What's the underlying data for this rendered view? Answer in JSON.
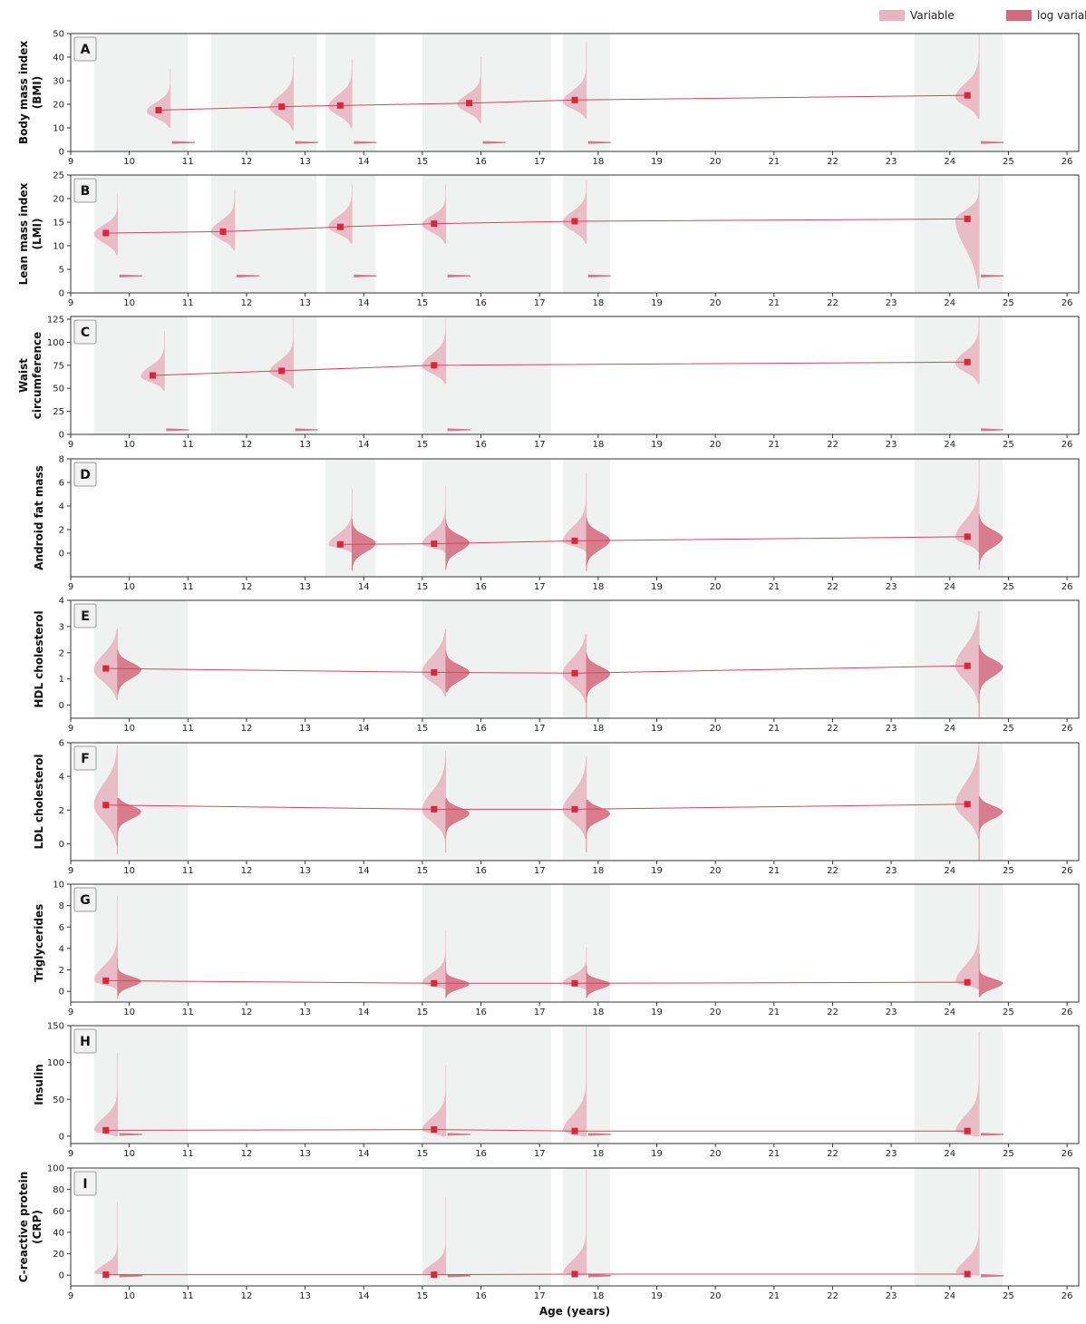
{
  "chart_data": {
    "type": "violin",
    "xlabel": "Age (years)",
    "xlim": [
      9,
      26.2
    ],
    "xticks": [
      9,
      10,
      11,
      12,
      13,
      14,
      15,
      16,
      17,
      18,
      19,
      20,
      21,
      22,
      23,
      24,
      25,
      26
    ],
    "legend": {
      "placement": "top-right",
      "entries": [
        {
          "label": "Variable",
          "color": "#e8b4bf"
        },
        {
          "label": "log variable",
          "color": "#d2697d"
        }
      ]
    },
    "colors": {
      "variable": "#e8b4bf",
      "log_variable": "#d2697d",
      "marker": "#d62839",
      "line": "#d6455a",
      "band": "#f0f1f1"
    },
    "visit_bands": [
      [
        9.4,
        11.0
      ],
      [
        11.4,
        13.2
      ],
      [
        13.35,
        14.2
      ],
      [
        15.0,
        17.2
      ],
      [
        17.4,
        18.2
      ],
      [
        23.4,
        24.9
      ]
    ],
    "panels": [
      {
        "letter": "A",
        "ylabel_lines": [
          "Body mass index",
          "(BMI)"
        ],
        "ylim": [
          0,
          50
        ],
        "yticks": [
          0,
          10,
          20,
          30,
          40,
          50
        ],
        "bands": [
          0,
          1,
          2,
          3,
          4,
          5
        ],
        "points": [
          [
            10.5,
            17.5
          ],
          [
            12.6,
            19
          ],
          [
            13.6,
            19.5
          ],
          [
            15.8,
            20.5
          ],
          [
            17.6,
            21.8
          ],
          [
            24.3,
            23.8
          ]
        ],
        "violins": [
          {
            "x": 10.7,
            "min": 10,
            "q": 16,
            "mid": 17,
            "max": 35,
            "w": 0.4,
            "log": {
              "y": 3.8,
              "w": 0.4,
              "h": 0.9
            }
          },
          {
            "x": 12.8,
            "min": 9,
            "q": 17,
            "mid": 18.5,
            "max": 40,
            "w": 0.4,
            "log": {
              "y": 3.8,
              "w": 0.4,
              "h": 0.9
            }
          },
          {
            "x": 13.8,
            "min": 10,
            "q": 17.5,
            "mid": 19,
            "max": 39,
            "w": 0.4,
            "log": {
              "y": 3.8,
              "w": 0.4,
              "h": 0.9
            }
          },
          {
            "x": 16.0,
            "min": 12,
            "q": 19,
            "mid": 20,
            "max": 40,
            "w": 0.4,
            "log": {
              "y": 3.8,
              "w": 0.4,
              "h": 0.9
            }
          },
          {
            "x": 17.8,
            "min": 14,
            "q": 20,
            "mid": 21,
            "max": 46,
            "w": 0.4,
            "log": {
              "y": 3.8,
              "w": 0.4,
              "h": 0.9
            }
          },
          {
            "x": 24.5,
            "min": 14,
            "q": 21.5,
            "mid": 23,
            "max": 50,
            "w": 0.4,
            "log": {
              "y": 3.8,
              "w": 0.4,
              "h": 0.9
            }
          }
        ]
      },
      {
        "letter": "B",
        "ylabel_lines": [
          "Lean mass index",
          "(LMI)"
        ],
        "ylim": [
          0,
          25
        ],
        "yticks": [
          0,
          5,
          10,
          15,
          20,
          25
        ],
        "bands": [
          0,
          1,
          2,
          3,
          4,
          5
        ],
        "points": [
          [
            9.6,
            12.7
          ],
          [
            11.6,
            13
          ],
          [
            13.6,
            14
          ],
          [
            15.2,
            14.7
          ],
          [
            17.6,
            15.2
          ],
          [
            24.3,
            15.7
          ]
        ],
        "violins": [
          {
            "x": 9.8,
            "min": 8,
            "q": 12,
            "mid": 12.5,
            "max": 21,
            "w": 0.4,
            "log": {
              "y": 3.6,
              "w": 0.4,
              "h": 0.6
            }
          },
          {
            "x": 11.8,
            "min": 9,
            "q": 12.3,
            "mid": 13,
            "max": 22,
            "w": 0.4,
            "log": {
              "y": 3.6,
              "w": 0.4,
              "h": 0.6
            }
          },
          {
            "x": 13.8,
            "min": 10.5,
            "q": 13.3,
            "mid": 14,
            "max": 23,
            "w": 0.4,
            "log": {
              "y": 3.6,
              "w": 0.4,
              "h": 0.6
            }
          },
          {
            "x": 15.4,
            "min": 10.5,
            "q": 14,
            "mid": 14.5,
            "max": 23,
            "w": 0.4,
            "log": {
              "y": 3.6,
              "w": 0.4,
              "h": 0.6
            }
          },
          {
            "x": 17.8,
            "min": 10.5,
            "q": 14.3,
            "mid": 15,
            "max": 24,
            "w": 0.4,
            "log": {
              "y": 3.6,
              "w": 0.4,
              "h": 0.6
            }
          },
          {
            "x": 24.5,
            "min": 1,
            "q": 15,
            "mid": 15.5,
            "max": 25,
            "w": 0.4,
            "log": {
              "y": 3.6,
              "w": 0.4,
              "h": 0.6
            }
          }
        ]
      },
      {
        "letter": "C",
        "ylabel_lines": [
          "Waist",
          "circumference"
        ],
        "ylim": [
          0,
          128
        ],
        "yticks": [
          0,
          25,
          50,
          75,
          100,
          125
        ],
        "bands": [
          0,
          1,
          3,
          5
        ],
        "points": [
          [
            10.4,
            64
          ],
          [
            12.6,
            69
          ],
          [
            15.2,
            75
          ],
          [
            24.3,
            78.5
          ]
        ],
        "violins": [
          {
            "x": 10.6,
            "min": 48,
            "q": 60,
            "mid": 63,
            "max": 112,
            "w": 0.4,
            "log": {
              "y": 5,
              "w": 0.4,
              "h": 1.5
            }
          },
          {
            "x": 12.8,
            "min": 50,
            "q": 65,
            "mid": 68,
            "max": 125,
            "w": 0.4,
            "log": {
              "y": 5,
              "w": 0.4,
              "h": 1.5
            }
          },
          {
            "x": 15.4,
            "min": 55,
            "q": 70,
            "mid": 74,
            "max": 126,
            "w": 0.4,
            "log": {
              "y": 5,
              "w": 0.4,
              "h": 1.5
            }
          },
          {
            "x": 24.5,
            "min": 55,
            "q": 73,
            "mid": 77,
            "max": 128,
            "w": 0.4,
            "log": {
              "y": 5,
              "w": 0.4,
              "h": 1.5
            }
          }
        ]
      },
      {
        "letter": "D",
        "ylabel_lines": [
          "Android fat mass"
        ],
        "ylim": [
          -2,
          8
        ],
        "yticks": [
          0,
          2,
          4,
          6,
          8
        ],
        "bands": [
          2,
          3,
          4,
          5
        ],
        "points": [
          [
            13.6,
            0.75
          ],
          [
            15.2,
            0.8
          ],
          [
            17.6,
            1.05
          ],
          [
            24.3,
            1.4
          ]
        ],
        "violins": [
          {
            "x": 13.8,
            "min": 0.1,
            "q": 0.5,
            "mid": 0.7,
            "max": 5.5,
            "w": 0.4,
            "log": {
              "y": 0.85,
              "w": 0.4,
              "lo": -1.5,
              "hi": 2.9,
              "spread": 0.8
            }
          },
          {
            "x": 15.4,
            "min": 0.1,
            "q": 0.5,
            "mid": 0.75,
            "max": 5.7,
            "w": 0.4,
            "log": {
              "y": 0.9,
              "w": 0.4,
              "lo": -1.4,
              "hi": 2.9,
              "spread": 0.8
            }
          },
          {
            "x": 17.8,
            "min": 0.15,
            "q": 0.7,
            "mid": 1.0,
            "max": 6.8,
            "w": 0.4,
            "log": {
              "y": 1.1,
              "w": 0.4,
              "lo": -1.5,
              "hi": 3.0,
              "spread": 0.85
            }
          },
          {
            "x": 24.5,
            "min": 0.1,
            "q": 0.9,
            "mid": 1.3,
            "max": 8,
            "w": 0.4,
            "log": {
              "y": 1.3,
              "w": 0.4,
              "lo": -1.4,
              "hi": 3.3,
              "spread": 0.85
            }
          }
        ]
      },
      {
        "letter": "E",
        "ylabel_lines": [
          "HDL cholesterol"
        ],
        "ylim": [
          -0.5,
          4
        ],
        "yticks": [
          0,
          1,
          2,
          3,
          4
        ],
        "bands": [
          0,
          3,
          4,
          5
        ],
        "points": [
          [
            9.6,
            1.4
          ],
          [
            15.2,
            1.25
          ],
          [
            17.6,
            1.22
          ],
          [
            24.3,
            1.5
          ]
        ],
        "violins": [
          {
            "x": 9.8,
            "min": 0.2,
            "q": 1.1,
            "mid": 1.35,
            "max": 2.9,
            "w": 0.4,
            "sym": true,
            "log": {
              "y": 1.35,
              "w": 0.4,
              "lo": 0.4,
              "hi": 2.1,
              "spread": 0.35
            }
          },
          {
            "x": 15.4,
            "min": 0.35,
            "q": 1.0,
            "mid": 1.25,
            "max": 2.9,
            "w": 0.4,
            "sym": true,
            "log": {
              "y": 1.25,
              "w": 0.4,
              "lo": 0.5,
              "hi": 2.1,
              "spread": 0.35
            }
          },
          {
            "x": 17.8,
            "min": 0.1,
            "q": 0.95,
            "mid": 1.2,
            "max": 2.7,
            "w": 0.4,
            "sym": true,
            "log": {
              "y": 1.2,
              "w": 0.4,
              "lo": -0.5,
              "hi": 2.0,
              "spread": 0.35
            }
          },
          {
            "x": 24.5,
            "min": 0.1,
            "q": 1.2,
            "mid": 1.5,
            "max": 3.6,
            "w": 0.4,
            "sym": true,
            "log": {
              "y": 1.45,
              "w": 0.4,
              "lo": -0.5,
              "hi": 2.3,
              "spread": 0.38
            }
          }
        ]
      },
      {
        "letter": "F",
        "ylabel_lines": [
          "LDL cholesterol"
        ],
        "ylim": [
          -1,
          6
        ],
        "yticks": [
          0,
          2,
          4,
          6
        ],
        "bands": [
          0,
          3,
          4,
          5
        ],
        "points": [
          [
            9.6,
            2.3
          ],
          [
            15.2,
            2.05
          ],
          [
            17.6,
            2.05
          ],
          [
            24.3,
            2.35
          ]
        ],
        "violins": [
          {
            "x": 9.8,
            "min": -0.1,
            "q": 1.8,
            "mid": 2.3,
            "max": 5.8,
            "w": 0.4,
            "sym": true,
            "log": {
              "y": 1.9,
              "w": 0.4,
              "lo": -0.6,
              "hi": 2.7,
              "spread": 0.45
            }
          },
          {
            "x": 15.4,
            "min": 0.3,
            "q": 1.6,
            "mid": 2.0,
            "max": 5.5,
            "w": 0.4,
            "sym": true,
            "log": {
              "y": 1.8,
              "w": 0.4,
              "lo": -0.5,
              "hi": 2.7,
              "spread": 0.45
            }
          },
          {
            "x": 17.8,
            "min": 0.3,
            "q": 1.6,
            "mid": 2.0,
            "max": 5.2,
            "w": 0.4,
            "sym": true,
            "log": {
              "y": 1.8,
              "w": 0.4,
              "lo": -0.5,
              "hi": 2.6,
              "spread": 0.45
            }
          },
          {
            "x": 24.5,
            "min": 0.3,
            "q": 1.8,
            "mid": 2.3,
            "max": 6,
            "w": 0.4,
            "sym": true,
            "log": {
              "y": 1.9,
              "w": 0.4,
              "lo": -1.0,
              "hi": 2.8,
              "spread": 0.45
            }
          }
        ]
      },
      {
        "letter": "G",
        "ylabel_lines": [
          "Triglycerides"
        ],
        "ylim": [
          -1,
          10
        ],
        "yticks": [
          0,
          2,
          4,
          6,
          8,
          10
        ],
        "bands": [
          0,
          3,
          4,
          5
        ],
        "points": [
          [
            9.6,
            1.0
          ],
          [
            15.2,
            0.75
          ],
          [
            17.6,
            0.75
          ],
          [
            24.3,
            0.85
          ]
        ],
        "violins": [
          {
            "x": 9.8,
            "min": 0.2,
            "q": 0.7,
            "mid": 0.95,
            "max": 8.9,
            "w": 0.4,
            "sym": true,
            "log": {
              "y": 0.95,
              "w": 0.4,
              "lo": -0.7,
              "hi": 3.1,
              "spread": 0.55
            }
          },
          {
            "x": 15.4,
            "min": 0.2,
            "q": 0.55,
            "mid": 0.75,
            "max": 5.7,
            "w": 0.4,
            "sym": true,
            "log": {
              "y": 0.7,
              "w": 0.4,
              "lo": -0.6,
              "hi": 2.7,
              "spread": 0.5
            }
          },
          {
            "x": 17.8,
            "min": 0.2,
            "q": 0.55,
            "mid": 0.75,
            "max": 4.1,
            "w": 0.4,
            "sym": true,
            "log": {
              "y": 0.7,
              "w": 0.4,
              "lo": -0.6,
              "hi": 2.4,
              "spread": 0.5
            }
          },
          {
            "x": 24.5,
            "min": 0.2,
            "q": 0.6,
            "mid": 0.85,
            "max": 10,
            "w": 0.4,
            "sym": true,
            "log": {
              "y": 0.75,
              "w": 0.4,
              "lo": -0.5,
              "hi": 3.5,
              "spread": 0.55
            }
          }
        ]
      },
      {
        "letter": "H",
        "ylabel_lines": [
          "Insulin"
        ],
        "ylim": [
          -10,
          150
        ],
        "yticks": [
          0,
          50,
          100,
          150
        ],
        "bands": [
          0,
          3,
          4,
          5
        ],
        "points": [
          [
            9.6,
            8
          ],
          [
            15.2,
            9
          ],
          [
            17.6,
            7
          ],
          [
            24.3,
            7
          ]
        ],
        "violins": [
          {
            "x": 9.8,
            "min": 0,
            "q": 4,
            "mid": 7,
            "max": 113,
            "w": 0.4,
            "log": {
              "y": 2.5,
              "w": 0.4,
              "h": 3.0
            }
          },
          {
            "x": 15.4,
            "min": 0,
            "q": 4,
            "mid": 8,
            "max": 97,
            "w": 0.4,
            "log": {
              "y": 2.5,
              "w": 0.4,
              "h": 3.0
            }
          },
          {
            "x": 17.8,
            "min": 0,
            "q": 3,
            "mid": 6,
            "max": 150,
            "w": 0.4,
            "log": {
              "y": 2.5,
              "w": 0.4,
              "h": 3.0
            }
          },
          {
            "x": 24.5,
            "min": 0,
            "q": 3,
            "mid": 6,
            "max": 142,
            "w": 0.4,
            "log": {
              "y": 2.5,
              "w": 0.4,
              "h": 3.0
            }
          }
        ]
      },
      {
        "letter": "I",
        "ylabel_lines": [
          "C-reactive protein",
          "(CRP)"
        ],
        "ylim": [
          -10,
          100
        ],
        "yticks": [
          0,
          20,
          40,
          60,
          80,
          100
        ],
        "bands": [
          0,
          3,
          4,
          5
        ],
        "points": [
          [
            9.6,
            0.5
          ],
          [
            15.2,
            0.5
          ],
          [
            17.6,
            1
          ],
          [
            24.3,
            1
          ]
        ],
        "violins": [
          {
            "x": 9.8,
            "min": 0,
            "q": 0.3,
            "mid": 0.6,
            "max": 68,
            "w": 0.4,
            "log": {
              "y": -0.5,
              "w": 0.4,
              "h": 3.0
            }
          },
          {
            "x": 15.4,
            "min": 0,
            "q": 0.3,
            "mid": 0.6,
            "max": 73,
            "w": 0.4,
            "log": {
              "y": -0.5,
              "w": 0.4,
              "h": 3.0
            }
          },
          {
            "x": 17.8,
            "min": 0,
            "q": 0.3,
            "mid": 0.8,
            "max": 100,
            "w": 0.4,
            "log": {
              "y": -0.5,
              "w": 0.4,
              "h": 3.0
            }
          },
          {
            "x": 24.5,
            "min": 0,
            "q": 0.4,
            "mid": 0.9,
            "max": 100,
            "w": 0.4,
            "log": {
              "y": -0.5,
              "w": 0.4,
              "h": 3.0
            }
          }
        ]
      }
    ]
  }
}
